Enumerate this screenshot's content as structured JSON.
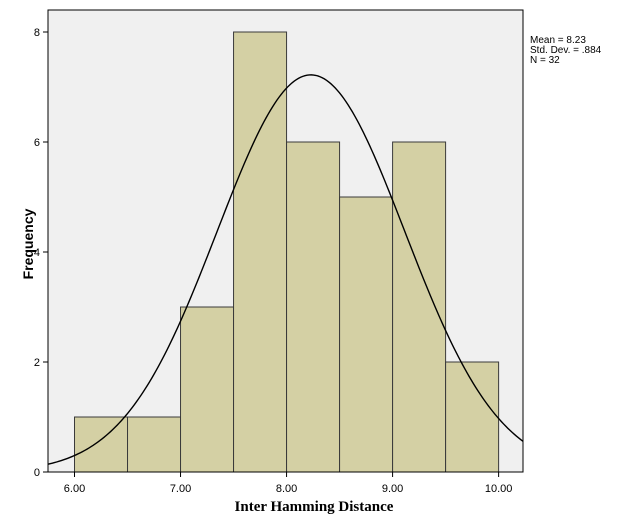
{
  "chart_data": {
    "type": "bar",
    "subtype": "histogram",
    "xlabel": "Inter Hamming Distance",
    "ylabel": "Frequency",
    "bins": [
      {
        "start": 6.0,
        "end": 6.5,
        "count": 1
      },
      {
        "start": 6.5,
        "end": 7.0,
        "count": 1
      },
      {
        "start": 7.0,
        "end": 7.5,
        "count": 3
      },
      {
        "start": 7.5,
        "end": 8.0,
        "count": 8
      },
      {
        "start": 8.0,
        "end": 8.5,
        "count": 6
      },
      {
        "start": 8.5,
        "end": 9.0,
        "count": 5
      },
      {
        "start": 9.0,
        "end": 9.5,
        "count": 6
      },
      {
        "start": 9.5,
        "end": 10.0,
        "count": 2
      }
    ],
    "xticks": [
      "6.00",
      "7.00",
      "8.00",
      "9.00",
      "10.00"
    ],
    "xtick_values": [
      6,
      7,
      8,
      9,
      10
    ],
    "yticks": [
      "0",
      "2",
      "4",
      "6",
      "8"
    ],
    "ytick_values": [
      0,
      2,
      4,
      6,
      8
    ],
    "xlim": [
      5.75,
      10.23
    ],
    "ylim": [
      0,
      8.4
    ],
    "normal_curve": {
      "mean": 8.23,
      "std": 0.884,
      "n": 32,
      "bin_width": 0.5
    },
    "stats_text": [
      "Mean = 8.23",
      "Std. Dev. = .884",
      "N = 32"
    ],
    "grid": false,
    "colors": {
      "bar_fill": "#d4d0a4",
      "bar_stroke": "#3a3a3a",
      "plot_bg": "#f0f0f0",
      "curve": "#000000"
    }
  }
}
